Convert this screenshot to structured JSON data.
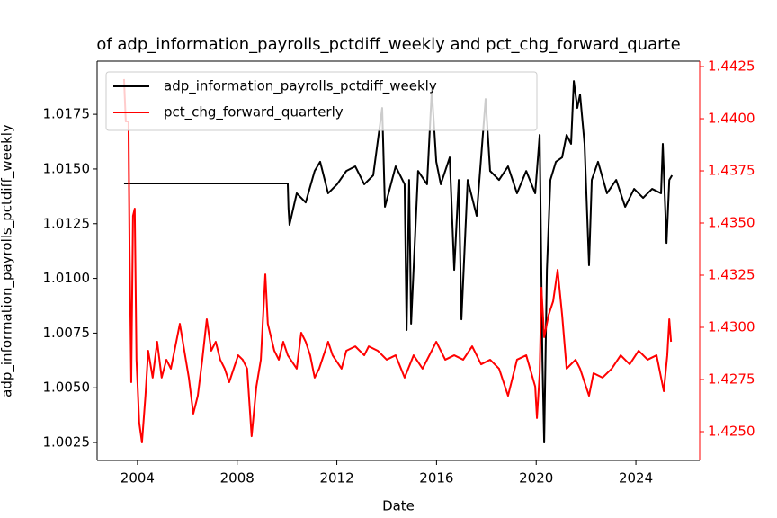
{
  "chart_data": {
    "type": "line",
    "title": "of adp_information_payrolls_pctdiff_weekly and pct_chg_forward_quarte",
    "x_label": "Date",
    "y_label": "adp_information_payrolls_pctdiff_weekly",
    "xlim": [
      2002.38,
      2026.56
    ],
    "xticks": [
      2004,
      2008,
      2012,
      2016,
      2020,
      2024
    ],
    "ylim": [
      1.00168,
      1.01993
    ],
    "yticks": [
      1.0025,
      {
        "value": 1.005,
        "label": "1.0050"
      },
      1.0075,
      {
        "value": 1.01,
        "label": "1.0100"
      },
      1.0125,
      {
        "value": 1.015,
        "label": "1.0150"
      },
      1.0175
    ],
    "y2lim": [
      1.42362,
      1.44276
    ],
    "y2ticks": [
      {
        "value": 1.425,
        "label": "1.4250"
      },
      1.4275,
      {
        "value": 1.43,
        "label": "1.4300"
      },
      1.4325,
      {
        "value": 1.435,
        "label": "1.4350"
      },
      1.4375,
      {
        "value": 1.44,
        "label": "1.4400"
      },
      1.4425
    ],
    "y2_color": "#ff0000",
    "legend": "upper left",
    "series": [
      {
        "name": "adp_information_payrolls_pctdiff_weekly",
        "color": "#000000",
        "x": [
          2003.46,
          2010.03,
          2010.06,
          2010.1,
          2010.39,
          2010.75,
          2011.11,
          2011.33,
          2011.65,
          2012.01,
          2012.38,
          2012.74,
          2013.1,
          2013.46,
          2013.82,
          2013.93,
          2014.36,
          2014.72,
          2014.8,
          2014.9,
          2014.98,
          2015.26,
          2015.62,
          2015.81,
          2015.99,
          2016.17,
          2016.53,
          2016.71,
          2016.89,
          2017.0,
          2017.25,
          2017.61,
          2017.97,
          2018.15,
          2018.51,
          2018.87,
          2019.23,
          2019.6,
          2019.96,
          2020.14,
          2020.25,
          2020.32,
          2020.43,
          2020.57,
          2020.79,
          2021.04,
          2021.22,
          2021.4,
          2021.51,
          2021.65,
          2021.76,
          2021.94,
          2022.12,
          2022.23,
          2022.48,
          2022.84,
          2023.21,
          2023.57,
          2023.93,
          2024.29,
          2024.65,
          2025.01,
          2025.08,
          2025.23,
          2025.34,
          2025.45
        ],
        "values": [
          1.01434,
          1.01434,
          1.01319,
          1.01245,
          1.01389,
          1.01347,
          1.01491,
          1.01533,
          1.01389,
          1.0143,
          1.01491,
          1.01512,
          1.0143,
          1.01471,
          1.01779,
          1.01327,
          1.01512,
          1.0143,
          1.00764,
          1.0145,
          1.00793,
          1.01491,
          1.0143,
          1.01861,
          1.01533,
          1.0143,
          1.01553,
          1.01039,
          1.0145,
          1.00813,
          1.0145,
          1.01286,
          1.0182,
          1.01491,
          1.0145,
          1.01512,
          1.01389,
          1.01491,
          1.01389,
          1.01656,
          1.00628,
          1.0025,
          1.01039,
          1.0145,
          1.01533,
          1.01553,
          1.01656,
          1.01615,
          1.01902,
          1.01779,
          1.01841,
          1.01615,
          1.0106,
          1.0145,
          1.01533,
          1.01389,
          1.0145,
          1.01327,
          1.01409,
          1.01368,
          1.01409,
          1.01389,
          1.01615,
          1.01162,
          1.0145,
          1.01471
        ]
      },
      {
        "name": "pct_chg_forward_quarterly",
        "color": "#ff0000",
        "axis": "y2",
        "x": [
          2003.46,
          2003.53,
          2003.64,
          2003.68,
          2003.75,
          2003.82,
          2003.89,
          2003.96,
          2004.07,
          2004.18,
          2004.32,
          2004.43,
          2004.61,
          2004.79,
          2004.97,
          2005.16,
          2005.34,
          2005.52,
          2005.7,
          2005.88,
          2006.06,
          2006.24,
          2006.42,
          2006.6,
          2006.78,
          2006.96,
          2007.14,
          2007.32,
          2007.5,
          2007.68,
          2007.86,
          2008.04,
          2008.22,
          2008.4,
          2008.58,
          2008.77,
          2008.95,
          2009.13,
          2009.23,
          2009.49,
          2009.67,
          2009.85,
          2010.03,
          2010.39,
          2010.57,
          2010.75,
          2010.93,
          2011.11,
          2011.29,
          2011.65,
          2011.83,
          2012.19,
          2012.38,
          2012.74,
          2013.1,
          2013.28,
          2013.64,
          2014.0,
          2014.36,
          2014.72,
          2015.08,
          2015.44,
          2015.99,
          2016.35,
          2016.71,
          2017.07,
          2017.43,
          2017.79,
          2018.15,
          2018.51,
          2018.87,
          2019.23,
          2019.6,
          2019.96,
          2020.03,
          2020.14,
          2020.21,
          2020.32,
          2020.5,
          2020.68,
          2020.86,
          2021.04,
          2021.22,
          2021.58,
          2021.76,
          2022.12,
          2022.3,
          2022.66,
          2023.03,
          2023.39,
          2023.75,
          2024.11,
          2024.47,
          2024.83,
          2025.12,
          2025.26,
          2025.34,
          2025.41
        ],
        "values": [
          1.4419,
          1.43987,
          1.43987,
          1.43397,
          1.42737,
          1.43534,
          1.43569,
          1.42845,
          1.42543,
          1.42448,
          1.42672,
          1.42888,
          1.42759,
          1.42931,
          1.42759,
          1.42845,
          1.42802,
          1.42909,
          1.43017,
          1.42888,
          1.42759,
          1.42586,
          1.42672,
          1.42845,
          1.43039,
          1.42888,
          1.42931,
          1.42845,
          1.42802,
          1.42737,
          1.42802,
          1.42866,
          1.42845,
          1.42802,
          1.42478,
          1.42716,
          1.42845,
          1.43254,
          1.43017,
          1.42888,
          1.42845,
          1.42931,
          1.42866,
          1.42802,
          1.42974,
          1.42931,
          1.42866,
          1.42759,
          1.42802,
          1.42931,
          1.42866,
          1.42802,
          1.42888,
          1.42909,
          1.42866,
          1.42909,
          1.42888,
          1.42845,
          1.42866,
          1.42759,
          1.42866,
          1.42802,
          1.42931,
          1.42845,
          1.42866,
          1.42845,
          1.42909,
          1.42823,
          1.42845,
          1.42802,
          1.42672,
          1.42845,
          1.42866,
          1.42716,
          1.42565,
          1.4278,
          1.4319,
          1.42953,
          1.4306,
          1.43125,
          1.43276,
          1.4306,
          1.42802,
          1.42845,
          1.42802,
          1.42672,
          1.4278,
          1.42759,
          1.42802,
          1.42866,
          1.42823,
          1.42888,
          1.42845,
          1.42866,
          1.42694,
          1.42866,
          1.43039,
          1.42931
        ]
      }
    ]
  }
}
